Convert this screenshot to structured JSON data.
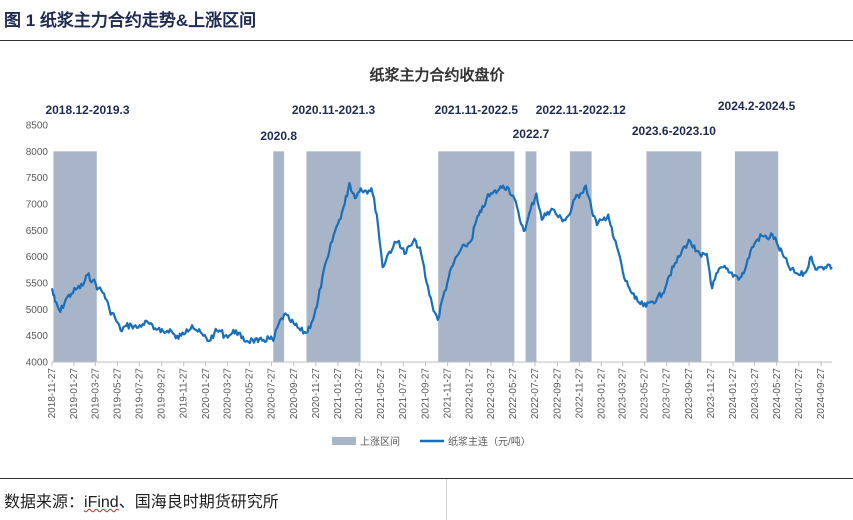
{
  "figure_title": "图 1  纸浆主力合约走势&上涨区间",
  "source": {
    "prefix": "数据来源：",
    "underlined": "iFind",
    "suffix": "、国海良时期货研究所"
  },
  "colors": {
    "line": "#1a6fba",
    "band": "#a8b4c7",
    "title": "#1f2a52"
  },
  "chart_data": {
    "type": "line",
    "title": "纸浆主力合约收盘价",
    "ylim": [
      4000,
      8500
    ],
    "yticks": [
      4000,
      4500,
      5000,
      5500,
      6000,
      6500,
      7000,
      7500,
      8000,
      8500
    ],
    "x_start": "2018-11-27",
    "x_end": "2024-10-27",
    "x_tick_labels": [
      "2018-11-27",
      "2019-01-27",
      "2019-03-27",
      "2019-05-27",
      "2019-07-27",
      "2019-09-27",
      "2019-11-27",
      "2020-01-27",
      "2020-03-27",
      "2020-05-27",
      "2020-07-27",
      "2020-09-27",
      "2020-11-27",
      "2021-01-27",
      "2021-03-27",
      "2021-05-27",
      "2021-07-27",
      "2021-09-27",
      "2021-11-27",
      "2022-01-27",
      "2022-03-27",
      "2022-05-27",
      "2022-07-27",
      "2022-09-27",
      "2022-11-27",
      "2023-01-27",
      "2023-03-27",
      "2023-05-27",
      "2023-07-27",
      "2023-09-27",
      "2023-11-27",
      "2024-01-27",
      "2024-03-27",
      "2024-05-27",
      "2024-07-27",
      "2024-09-27"
    ],
    "legend": {
      "band": "上涨区间",
      "line": "纸浆主连（元/吨）"
    },
    "bands": [
      {
        "label": "2018.12-2019.3",
        "start": "2018-12-01",
        "end": "2019-03-31",
        "top": 8000
      },
      {
        "label": "2020.8",
        "start": "2020-08-01",
        "end": "2020-08-31",
        "top": 8000
      },
      {
        "label": "2020.11-2021.3",
        "start": "2020-11-01",
        "end": "2021-03-31",
        "top": 8000
      },
      {
        "label": "2021.11-2022.5",
        "start": "2021-11-01",
        "end": "2022-05-31",
        "top": 8000
      },
      {
        "label": "2022.7",
        "start": "2022-07-01",
        "end": "2022-07-31",
        "top": 8000
      },
      {
        "label": "2022.11-2022.12",
        "start": "2022-11-01",
        "end": "2022-12-31",
        "top": 8000
      },
      {
        "label": "2023.6-2023.10",
        "start": "2023-06-01",
        "end": "2023-10-31",
        "top": 8000
      },
      {
        "label": "2024.2-2024.5",
        "start": "2024-02-01",
        "end": "2024-05-31",
        "top": 8000
      }
    ],
    "series": [
      {
        "name": "纸浆主连（元/吨）",
        "points": [
          [
            "2018-11-27",
            5400
          ],
          [
            "2018-12-05",
            5150
          ],
          [
            "2018-12-20",
            4950
          ],
          [
            "2019-01-05",
            5200
          ],
          [
            "2019-01-20",
            5300
          ],
          [
            "2019-02-05",
            5400
          ],
          [
            "2019-02-20",
            5450
          ],
          [
            "2019-03-05",
            5650
          ],
          [
            "2019-03-20",
            5550
          ],
          [
            "2019-04-05",
            5400
          ],
          [
            "2019-04-20",
            5300
          ],
          [
            "2019-05-05",
            5000
          ],
          [
            "2019-05-20",
            4850
          ],
          [
            "2019-06-05",
            4600
          ],
          [
            "2019-06-20",
            4680
          ],
          [
            "2019-07-05",
            4700
          ],
          [
            "2019-07-20",
            4650
          ],
          [
            "2019-08-05",
            4720
          ],
          [
            "2019-08-20",
            4750
          ],
          [
            "2019-09-05",
            4620
          ],
          [
            "2019-09-20",
            4650
          ],
          [
            "2019-10-05",
            4550
          ],
          [
            "2019-10-20",
            4620
          ],
          [
            "2019-11-05",
            4450
          ],
          [
            "2019-11-20",
            4500
          ],
          [
            "2019-12-05",
            4620
          ],
          [
            "2019-12-20",
            4700
          ],
          [
            "2020-01-05",
            4580
          ],
          [
            "2020-01-20",
            4500
          ],
          [
            "2020-02-05",
            4400
          ],
          [
            "2020-02-20",
            4550
          ],
          [
            "2020-03-05",
            4600
          ],
          [
            "2020-03-20",
            4500
          ],
          [
            "2020-04-05",
            4520
          ],
          [
            "2020-04-20",
            4600
          ],
          [
            "2020-05-05",
            4450
          ],
          [
            "2020-05-20",
            4400
          ],
          [
            "2020-06-05",
            4420
          ],
          [
            "2020-06-20",
            4380
          ],
          [
            "2020-07-05",
            4420
          ],
          [
            "2020-07-20",
            4450
          ],
          [
            "2020-08-01",
            4400
          ],
          [
            "2020-08-15",
            4700
          ],
          [
            "2020-08-31",
            4900
          ],
          [
            "2020-09-15",
            4800
          ],
          [
            "2020-09-30",
            4700
          ],
          [
            "2020-10-15",
            4600
          ],
          [
            "2020-10-31",
            4550
          ],
          [
            "2020-11-15",
            4750
          ],
          [
            "2020-11-30",
            5050
          ],
          [
            "2020-12-15",
            5600
          ],
          [
            "2020-12-31",
            6000
          ],
          [
            "2021-01-15",
            6400
          ],
          [
            "2021-01-31",
            6700
          ],
          [
            "2021-02-15",
            7000
          ],
          [
            "2021-02-28",
            7400
          ],
          [
            "2021-03-10",
            7200
          ],
          [
            "2021-03-20",
            7150
          ],
          [
            "2021-03-31",
            7300
          ],
          [
            "2021-04-15",
            7250
          ],
          [
            "2021-04-30",
            7300
          ],
          [
            "2021-05-15",
            6800
          ],
          [
            "2021-05-31",
            5800
          ],
          [
            "2021-06-15",
            6050
          ],
          [
            "2021-06-30",
            6200
          ],
          [
            "2021-07-15",
            6300
          ],
          [
            "2021-07-31",
            6050
          ],
          [
            "2021-08-15",
            6200
          ],
          [
            "2021-08-31",
            6300
          ],
          [
            "2021-09-15",
            6050
          ],
          [
            "2021-09-30",
            5500
          ],
          [
            "2021-10-15",
            5100
          ],
          [
            "2021-10-31",
            4800
          ],
          [
            "2021-11-15",
            5250
          ],
          [
            "2021-11-30",
            5600
          ],
          [
            "2021-12-15",
            5900
          ],
          [
            "2021-12-31",
            6100
          ],
          [
            "2022-01-15",
            6200
          ],
          [
            "2022-01-31",
            6300
          ],
          [
            "2022-02-15",
            6700
          ],
          [
            "2022-02-28",
            6850
          ],
          [
            "2022-03-15",
            7100
          ],
          [
            "2022-03-31",
            7200
          ],
          [
            "2022-04-15",
            7250
          ],
          [
            "2022-04-30",
            7350
          ],
          [
            "2022-05-15",
            7300
          ],
          [
            "2022-05-31",
            7100
          ],
          [
            "2022-06-15",
            6700
          ],
          [
            "2022-06-30",
            6500
          ],
          [
            "2022-07-15",
            6900
          ],
          [
            "2022-07-31",
            7200
          ],
          [
            "2022-08-15",
            6700
          ],
          [
            "2022-08-31",
            6850
          ],
          [
            "2022-09-15",
            6900
          ],
          [
            "2022-09-30",
            6750
          ],
          [
            "2022-10-15",
            6700
          ],
          [
            "2022-10-31",
            6800
          ],
          [
            "2022-11-15",
            7100
          ],
          [
            "2022-11-30",
            7200
          ],
          [
            "2022-12-15",
            7350
          ],
          [
            "2022-12-31",
            6900
          ],
          [
            "2023-01-15",
            6600
          ],
          [
            "2023-01-31",
            6700
          ],
          [
            "2023-02-15",
            6800
          ],
          [
            "2023-02-28",
            6400
          ],
          [
            "2023-03-15",
            6100
          ],
          [
            "2023-03-31",
            5600
          ],
          [
            "2023-04-15",
            5400
          ],
          [
            "2023-04-30",
            5200
          ],
          [
            "2023-05-15",
            5100
          ],
          [
            "2023-05-31",
            5050
          ],
          [
            "2023-06-15",
            5150
          ],
          [
            "2023-06-30",
            5200
          ],
          [
            "2023-07-15",
            5300
          ],
          [
            "2023-07-31",
            5600
          ],
          [
            "2023-08-15",
            5800
          ],
          [
            "2023-08-31",
            6000
          ],
          [
            "2023-09-15",
            6200
          ],
          [
            "2023-09-30",
            6300
          ],
          [
            "2023-10-15",
            6100
          ],
          [
            "2023-10-31",
            6000
          ],
          [
            "2023-11-15",
            6050
          ],
          [
            "2023-11-30",
            5400
          ],
          [
            "2023-12-15",
            5700
          ],
          [
            "2023-12-31",
            5800
          ],
          [
            "2024-01-15",
            5700
          ],
          [
            "2024-01-31",
            5650
          ],
          [
            "2024-02-15",
            5600
          ],
          [
            "2024-02-29",
            5750
          ],
          [
            "2024-03-15",
            6100
          ],
          [
            "2024-03-31",
            6300
          ],
          [
            "2024-04-15",
            6400
          ],
          [
            "2024-04-30",
            6350
          ],
          [
            "2024-05-15",
            6420
          ],
          [
            "2024-05-31",
            6200
          ],
          [
            "2024-06-15",
            6000
          ],
          [
            "2024-06-30",
            5800
          ],
          [
            "2024-07-15",
            5700
          ],
          [
            "2024-07-31",
            5650
          ],
          [
            "2024-08-15",
            5700
          ],
          [
            "2024-08-31",
            6000
          ],
          [
            "2024-09-15",
            5750
          ],
          [
            "2024-09-30",
            5800
          ],
          [
            "2024-10-15",
            5850
          ],
          [
            "2024-10-27",
            5800
          ]
        ]
      }
    ]
  }
}
